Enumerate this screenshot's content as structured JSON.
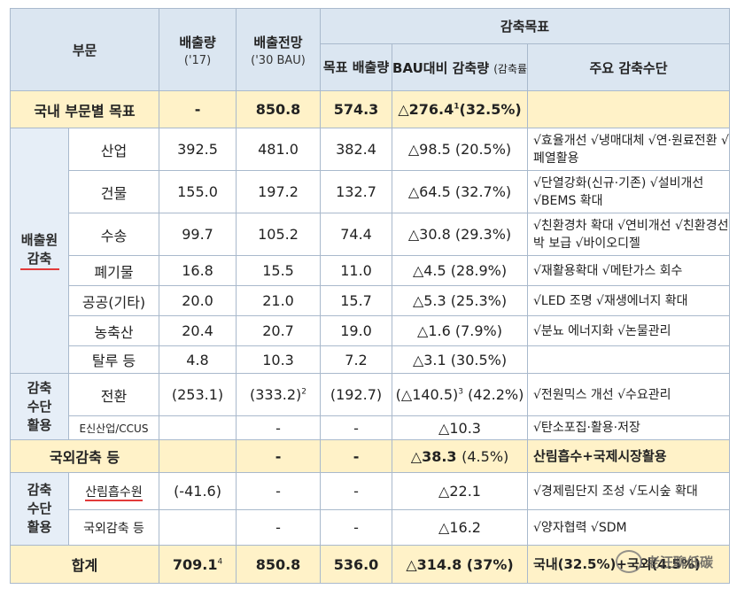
{
  "header": {
    "sector": "부문",
    "emission": "배출량",
    "emission_year": "('17)",
    "outlook": "배출전망",
    "outlook_sub": "('30 BAU)",
    "reduction_goal": "감축목표",
    "target": "목표 배출량",
    "bau_reduction": "BAU대비 감축량",
    "bau_reduction_sub": "(감축률)",
    "main_means": "주요 감축수단"
  },
  "domestic": {
    "label": "국내 부문별 목표",
    "emission": "-",
    "outlook": "850.8",
    "target": "574.3",
    "reduction": "△276.4",
    "reduction_sup": "1",
    "rate": "(32.5%)",
    "means": ""
  },
  "groups": {
    "emission_source": "배출원 감축",
    "means_use": "감축수단 활용",
    "means_use2": "감축수단 활용"
  },
  "source_rows": [
    {
      "label": "산업",
      "emission": "392.5",
      "outlook": "481.0",
      "target": "382.4",
      "reduction": "△98.5 (20.5%)",
      "means": "√효율개선 √냉매대체 √연·원료전환 √폐열활용"
    },
    {
      "label": "건물",
      "emission": "155.0",
      "outlook": "197.2",
      "target": "132.7",
      "reduction": "△64.5 (32.7%)",
      "means": "√단열강화(신규·기존) √설비개선 √BEMS 확대"
    },
    {
      "label": "수송",
      "emission": "99.7",
      "outlook": "105.2",
      "target": "74.4",
      "reduction": "△30.8 (29.3%)",
      "means": "√친환경차 확대 √연비개선 √친환경선박 보급 √바이오디젤"
    },
    {
      "label": "폐기물",
      "emission": "16.8",
      "outlook": "15.5",
      "target": "11.0",
      "reduction": "△4.5 (28.9%)",
      "means": "√재활용확대 √메탄가스 회수"
    },
    {
      "label": "공공(기타)",
      "emission": "20.0",
      "outlook": "21.0",
      "target": "15.7",
      "reduction": "△5.3 (25.3%)",
      "means": "√LED 조명 √재생에너지 확대"
    },
    {
      "label": "농축산",
      "emission": "20.4",
      "outlook": "20.7",
      "target": "19.0",
      "reduction": "△1.6 (7.9%)",
      "means": "√분뇨 에너지화 √논물관리"
    },
    {
      "label": "탈루 등",
      "emission": "4.8",
      "outlook": "10.3",
      "target": "7.2",
      "reduction": "△3.1 (30.5%)",
      "means": ""
    }
  ],
  "conversion": {
    "label": "전환",
    "emission": "(253.1)",
    "outlook": "(333.2)",
    "outlook_sup": "2",
    "target": "(192.7)",
    "reduction": "(△140.5)",
    "reduction_sup": "3",
    "rate": "(42.2%)",
    "means": "√전원믹스 개선 √수요관리"
  },
  "ccus": {
    "label": "E신산업/CCUS",
    "emission": "",
    "outlook": "-",
    "target": "-",
    "reduction": "△10.3",
    "means": "√탄소포집·활용·저장"
  },
  "overseas": {
    "label": "국외감축 등",
    "emission": "",
    "outlook": "-",
    "target": "-",
    "reduction": "△38.3",
    "rate": "(4.5%)",
    "means": "산림흡수+국제시장활용"
  },
  "forest": {
    "label": "산림흡수원",
    "emission": "(-41.6)",
    "outlook": "-",
    "target": "-",
    "reduction": "△22.1",
    "means": "√경제림단지 조성 √도시숲 확대"
  },
  "abroad": {
    "label": "국외감축 등",
    "emission": "",
    "outlook": "-",
    "target": "-",
    "reduction": "△16.2",
    "means": "√양자협력 √SDM"
  },
  "total": {
    "label": "합계",
    "emission": "709.1",
    "emission_sup": "4",
    "outlook": "850.8",
    "target": "536.0",
    "reduction": "△314.8 (37%)",
    "means": "국내(32.5%)+국외(4.5%)"
  },
  "watermark": "老汪聊低碳"
}
